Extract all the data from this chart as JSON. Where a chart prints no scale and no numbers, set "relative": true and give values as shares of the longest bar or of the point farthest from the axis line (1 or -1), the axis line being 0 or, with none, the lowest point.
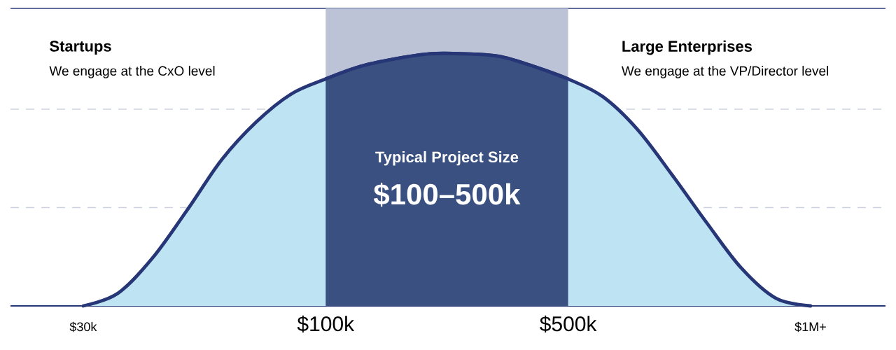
{
  "chart_data": {
    "type": "area",
    "relative": true,
    "categories": [
      "$30k",
      null,
      null,
      null,
      null,
      null,
      null,
      "$100k",
      null,
      null,
      null,
      null,
      null,
      null,
      "$500k",
      null,
      null,
      null,
      null,
      null,
      null,
      "$1M+"
    ],
    "series": [
      {
        "color": "#bee3f2",
        "values": [
          0,
          0.05,
          0.19,
          0.38,
          0.58,
          0.73,
          0.84,
          0.9,
          0.95,
          0.98,
          1,
          1,
          0.99,
          0.95,
          0.9,
          0.83,
          0.7,
          0.52,
          0.33,
          0.15,
          0.03,
          0
        ]
      },
      {
        "color": "#3a5080",
        "values": [
          null,
          null,
          null,
          null,
          null,
          null,
          null,
          0.9,
          0.95,
          0.98,
          1,
          1,
          0.99,
          0.95,
          0.9,
          null,
          null,
          null,
          null,
          null,
          null,
          null
        ]
      }
    ],
    "bands": [
      {
        "axis": "x",
        "from": "$100k",
        "to": "$500k",
        "label": "Typical Project Size",
        "color": "#bcc3d6"
      }
    ],
    "ref_lines": [
      {
        "axis": "y",
        "value": 0.39,
        "color": "#cdd3e0",
        "line_style": "dashed"
      },
      {
        "axis": "y",
        "value": 0.78,
        "color": "#cdd3e0",
        "line_style": "dashed"
      },
      {
        "axis": "y",
        "value": 1.18,
        "color": "#2b3b78",
        "line_style": "solid"
      }
    ],
    "annotations": [
      "Startups",
      "We engage at the CxO level",
      "Large Enterprises",
      "We engage at the VP/Director level",
      "$100–500k"
    ]
  }
}
